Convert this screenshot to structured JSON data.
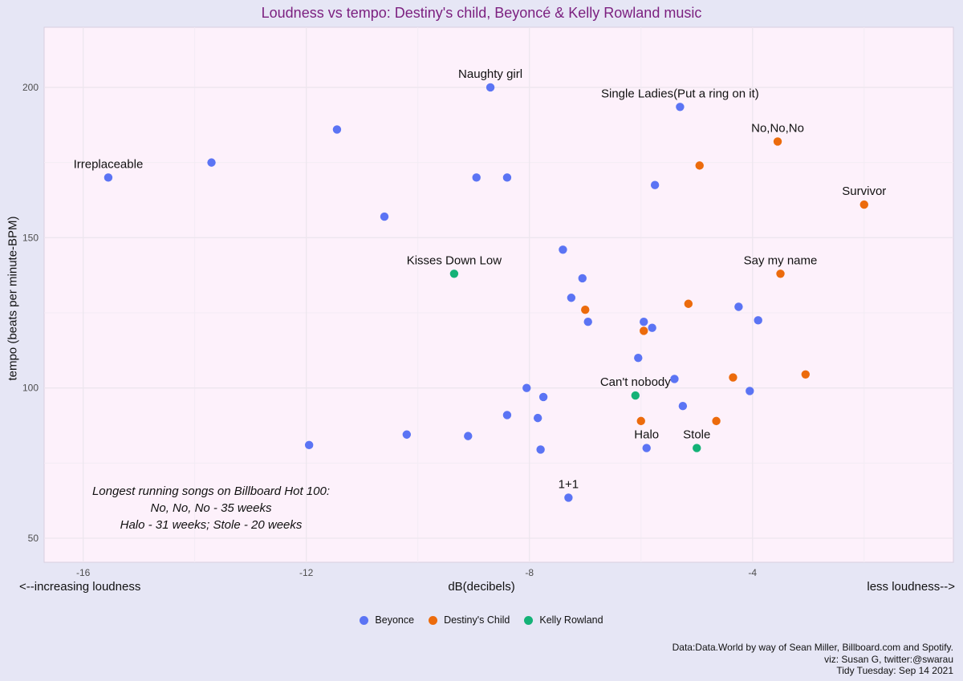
{
  "title": "Loudness vs tempo: Destiny's child, Beyoncé & Kelly Rowland music",
  "note_lines": [
    "Longest running songs on Billboard Hot 100:",
    "No, No, No - 35 weeks",
    "Halo - 31 weeks; Stole - 20 weeks"
  ],
  "x_note_left": "<--increasing loudness",
  "x_note_right": "less loudness-->",
  "caption_lines": [
    "Data:Data.World by way of Sean Miller, Billboard.com and Spotify.",
    "viz: Susan G, twitter:@swarau",
    "Tidy Tuesday: Sep 14 2021"
  ],
  "colors": {
    "Beyonce": "#5b74f4",
    "Destiny's Child": "#ec6b0c",
    "Kelly Rowland": "#14b277",
    "panel": "#fdf1fb",
    "grid": "#ede6ee",
    "title": "#7b1f7f"
  },
  "chart_data": {
    "type": "scatter",
    "title": "Loudness vs tempo: Destiny's child, Beyoncé & Kelly Rowland music",
    "xlabel": "dB(decibels)",
    "ylabel": "tempo (beats per minute-BPM)",
    "xlim": [
      -16.7,
      -0.4
    ],
    "ylim": [
      42,
      220
    ],
    "xticks": [
      -16,
      -12,
      -8,
      -4
    ],
    "yticks": [
      50,
      100,
      150,
      200
    ],
    "grid": true,
    "legend_position": "bottom",
    "series": [
      {
        "name": "Beyonce",
        "points": [
          {
            "x": -15.55,
            "y": 170,
            "label": "Irreplaceable"
          },
          {
            "x": -8.7,
            "y": 200,
            "label": "Naughty girl"
          },
          {
            "x": -5.3,
            "y": 193.5,
            "label": "Single Ladies(Put a ring on it)"
          },
          {
            "x": -13.7,
            "y": 175
          },
          {
            "x": -11.45,
            "y": 186
          },
          {
            "x": -8.95,
            "y": 170
          },
          {
            "x": -8.4,
            "y": 170
          },
          {
            "x": -5.75,
            "y": 167.5
          },
          {
            "x": -10.6,
            "y": 157
          },
          {
            "x": -7.4,
            "y": 146
          },
          {
            "x": -7.05,
            "y": 136.5
          },
          {
            "x": -7.25,
            "y": 130
          },
          {
            "x": -4.25,
            "y": 127
          },
          {
            "x": -3.9,
            "y": 122.5
          },
          {
            "x": -6.95,
            "y": 122
          },
          {
            "x": -5.95,
            "y": 122
          },
          {
            "x": -5.8,
            "y": 120
          },
          {
            "x": -6.05,
            "y": 110
          },
          {
            "x": -5.4,
            "y": 103
          },
          {
            "x": -8.05,
            "y": 100
          },
          {
            "x": -7.75,
            "y": 97
          },
          {
            "x": -4.05,
            "y": 99
          },
          {
            "x": -5.25,
            "y": 94
          },
          {
            "x": -8.4,
            "y": 91
          },
          {
            "x": -7.85,
            "y": 90
          },
          {
            "x": -11.95,
            "y": 81
          },
          {
            "x": -10.2,
            "y": 84.5
          },
          {
            "x": -9.1,
            "y": 84
          },
          {
            "x": -7.8,
            "y": 79.5
          },
          {
            "x": -5.9,
            "y": 80,
            "label": "Halo"
          },
          {
            "x": -7.3,
            "y": 63.5,
            "label": "1+1"
          }
        ]
      },
      {
        "name": "Destiny's Child",
        "points": [
          {
            "x": -3.55,
            "y": 182,
            "label": "No,No,No"
          },
          {
            "x": -4.95,
            "y": 174
          },
          {
            "x": -2.0,
            "y": 161,
            "label": "Survivor"
          },
          {
            "x": -3.5,
            "y": 138,
            "label": "Say my name"
          },
          {
            "x": -5.15,
            "y": 128
          },
          {
            "x": -7.0,
            "y": 126
          },
          {
            "x": -5.95,
            "y": 119
          },
          {
            "x": -4.35,
            "y": 103.5
          },
          {
            "x": -3.05,
            "y": 104.5
          },
          {
            "x": -6.0,
            "y": 89
          },
          {
            "x": -4.65,
            "y": 89
          }
        ]
      },
      {
        "name": "Kelly Rowland",
        "points": [
          {
            "x": -9.35,
            "y": 138,
            "label": "Kisses Down Low"
          },
          {
            "x": -6.1,
            "y": 97.5,
            "label": "Can't nobody"
          },
          {
            "x": -5.0,
            "y": 80,
            "label": "Stole"
          }
        ]
      }
    ]
  }
}
